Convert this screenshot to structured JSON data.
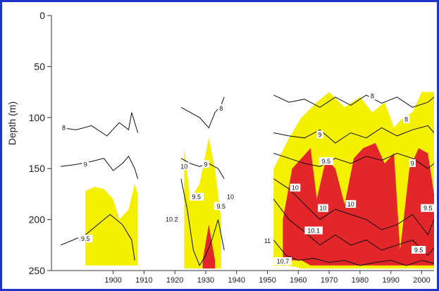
{
  "chart_data": {
    "type": "area",
    "title": "",
    "xlabel": "",
    "ylabel": "Depth (m)",
    "xlim": [
      1880,
      2004
    ],
    "ylim": [
      0,
      250
    ],
    "y_inverted": true,
    "grid": false,
    "x_ticks": [
      "1900",
      "1910",
      "1920",
      "1930",
      "1940",
      "1950",
      "1960",
      "1970",
      "1980",
      "1990",
      "2000"
    ],
    "y_ticks": [
      "0",
      "50",
      "100",
      "150",
      "200",
      "250"
    ],
    "colors": {
      "yellow": "#f5f000",
      "red": "#e2262a",
      "line": "#111111",
      "frame": "#1f33c9"
    },
    "series": [
      {
        "fill": "yellow",
        "regions": [
          {
            "x": [
              1891,
              1894,
              1897,
              1900,
              1902,
              1905,
              1907,
              1908
            ],
            "top": [
              172,
              168,
              170,
              180,
              200,
              190,
              165,
              175
            ],
            "bottom": [
              245,
              245,
              245,
              245,
              245,
              245,
              245,
              245
            ]
          },
          {
            "x": [
              1923,
              1925,
              1928,
              1931,
              1933,
              1935
            ],
            "top": [
              130,
              180,
              165,
              120,
              150,
              200
            ],
            "bottom": [
              248,
              248,
              248,
              248,
              248,
              248
            ]
          },
          {
            "x": [
              1952,
              1957,
              1961,
              1966,
              1970,
              1975,
              1980,
              1984,
              1988,
              1991,
              1994,
              1997,
              2000,
              2004
            ],
            "top": [
              150,
              120,
              100,
              85,
              75,
              90,
              80,
              95,
              85,
              110,
              100,
              95,
              75,
              75
            ],
            "bottom": [
              245,
              245,
              248,
              248,
              248,
              248,
              248,
              248,
              248,
              248,
              248,
              248,
              248,
              248
            ]
          }
        ]
      },
      {
        "fill": "red",
        "regions": [
          {
            "x": [
              1929,
              1931,
              1933
            ],
            "top": [
              240,
              205,
              240
            ],
            "bottom": [
              248,
              248,
              248
            ]
          },
          {
            "x": [
              1955,
              1958,
              1961,
              1964,
              1966,
              1969,
              1972,
              1975,
              1978,
              1981,
              1985,
              1988,
              1991,
              1993,
              1996,
              1999,
              2002,
              2004
            ],
            "top": [
              200,
              150,
              140,
              130,
              180,
              140,
              150,
              185,
              140,
              130,
              125,
              145,
              135,
              230,
              150,
              130,
              135,
              175
            ],
            "bottom": [
              245,
              240,
              240,
              245,
              245,
              245,
              245,
              245,
              245,
              245,
              245,
              245,
              245,
              245,
              245,
              245,
              245,
              245
            ]
          }
        ]
      }
    ],
    "contours": [
      {
        "level": "8",
        "x": [
          1883,
          1888,
          1893,
          1898,
          1902,
          1905,
          1906,
          1908
        ],
        "y": [
          110,
          112,
          108,
          118,
          105,
          112,
          95,
          115
        ]
      },
      {
        "level": "9",
        "x": [
          1883,
          1888,
          1893,
          1897,
          1900,
          1903,
          1905,
          1907,
          1908
        ],
        "y": [
          148,
          146,
          143,
          140,
          152,
          145,
          138,
          150,
          160
        ]
      },
      {
        "level": "9.5",
        "x": [
          1883,
          1887,
          1891,
          1895,
          1899,
          1903,
          1906,
          1907
        ],
        "y": [
          225,
          220,
          215,
          205,
          195,
          205,
          220,
          240
        ]
      },
      {
        "level": "8",
        "x": [
          1922,
          1925,
          1928,
          1931,
          1933,
          1935,
          1936
        ],
        "y": [
          90,
          95,
          100,
          110,
          95,
          88,
          80
        ]
      },
      {
        "level": "9",
        "x": [
          1922,
          1925,
          1928,
          1931,
          1934,
          1936
        ],
        "y": [
          140,
          145,
          148,
          145,
          150,
          160
        ]
      },
      {
        "level": "10",
        "x": [
          1922,
          1924,
          1926,
          1928,
          1930,
          1932,
          1934,
          1936
        ],
        "y": [
          160,
          190,
          230,
          245,
          235,
          220,
          200,
          230
        ]
      },
      {
        "level": "8",
        "x": [
          1952,
          1957,
          1962,
          1967,
          1972,
          1977,
          1982,
          1987,
          1992,
          1997,
          2002,
          2004
        ],
        "y": [
          78,
          85,
          82,
          90,
          80,
          88,
          78,
          86,
          80,
          90,
          85,
          80
        ]
      },
      {
        "level": "9",
        "x": [
          1952,
          1957,
          1962,
          1967,
          1972,
          1977,
          1982,
          1987,
          1992,
          1997,
          2002,
          2004
        ],
        "y": [
          115,
          118,
          120,
          112,
          125,
          115,
          120,
          110,
          118,
          112,
          108,
          115
        ]
      },
      {
        "level": "9.5",
        "x": [
          1952,
          1957,
          1962,
          1967,
          1972,
          1977,
          1982,
          1987,
          1992,
          1997,
          2002,
          2004
        ],
        "y": [
          135,
          140,
          145,
          148,
          140,
          145,
          138,
          142,
          135,
          140,
          150,
          145
        ]
      },
      {
        "level": "10",
        "x": [
          1952,
          1957,
          1962,
          1967,
          1972,
          1977,
          1982,
          1987,
          1992,
          1997,
          2002,
          2004
        ],
        "y": [
          160,
          170,
          185,
          200,
          190,
          195,
          200,
          210,
          205,
          195,
          215,
          200
        ]
      },
      {
        "level": "10.1",
        "x": [
          1952,
          1957,
          1962,
          1967,
          1972,
          1977,
          1982,
          1987,
          1992,
          1997,
          2002,
          2004
        ],
        "y": [
          180,
          200,
          212,
          225,
          215,
          225,
          220,
          230,
          225,
          220,
          235,
          228
        ]
      },
      {
        "level": "10.7",
        "x": [
          1952,
          1956,
          1960,
          1965,
          1970,
          1975,
          1980,
          1985,
          1990,
          1995,
          2000,
          2004
        ],
        "y": [
          220,
          235,
          240,
          238,
          242,
          240,
          245,
          242,
          240,
          245,
          240,
          243
        ]
      }
    ],
    "annotations": [
      {
        "text": "8",
        "x": 1884,
        "y": 110
      },
      {
        "text": "9",
        "x": 1891,
        "y": 146
      },
      {
        "text": "9.5",
        "x": 1891,
        "y": 219
      },
      {
        "text": "8",
        "x": 1935,
        "y": 91
      },
      {
        "text": "10",
        "x": 1923,
        "y": 148
      },
      {
        "text": "9",
        "x": 1930,
        "y": 146
      },
      {
        "text": "9.5",
        "x": 1927,
        "y": 178
      },
      {
        "text": "10.2",
        "x": 1919,
        "y": 200
      },
      {
        "text": "9.5",
        "x": 1935,
        "y": 187
      },
      {
        "text": "10",
        "x": 1938,
        "y": 178
      },
      {
        "text": "8",
        "x": 1984,
        "y": 79
      },
      {
        "text": "9",
        "x": 1967,
        "y": 117
      },
      {
        "text": "9.5",
        "x": 1969,
        "y": 143
      },
      {
        "text": "10",
        "x": 1959,
        "y": 169
      },
      {
        "text": "10",
        "x": 1968,
        "y": 189
      },
      {
        "text": "10",
        "x": 1977,
        "y": 185
      },
      {
        "text": "10.1",
        "x": 1965,
        "y": 211
      },
      {
        "text": "11",
        "x": 1950,
        "y": 221
      },
      {
        "text": "10.7",
        "x": 1955,
        "y": 241
      },
      {
        "text": "8",
        "x": 1995,
        "y": 102
      },
      {
        "text": "9",
        "x": 1997,
        "y": 145
      },
      {
        "text": "9.5",
        "x": 2002,
        "y": 189
      },
      {
        "text": "9.5",
        "x": 1999,
        "y": 230
      }
    ]
  }
}
